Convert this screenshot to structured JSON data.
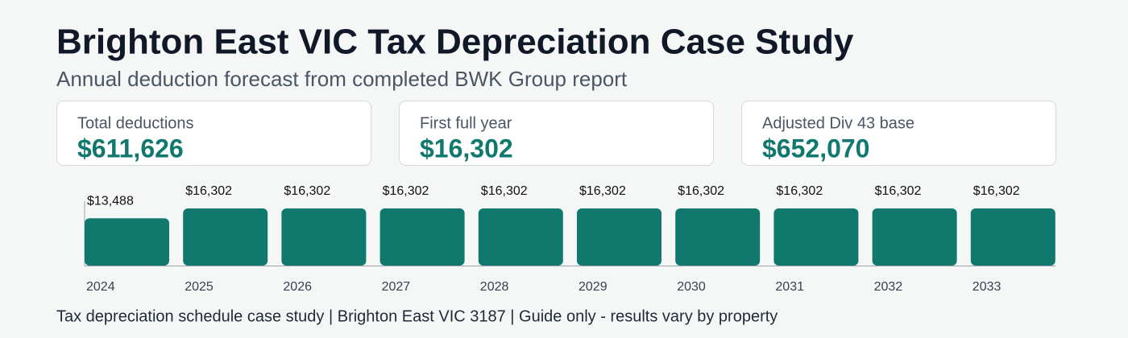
{
  "header": {
    "title": "Brighton East VIC Tax Depreciation Case Study",
    "subtitle": "Annual deduction forecast from completed BWK Group report"
  },
  "kpis": [
    {
      "label": "Total deductions",
      "value": "$611,626"
    },
    {
      "label": "First full year",
      "value": "$16,302"
    },
    {
      "label": "Adjusted Div 43 base",
      "value": "$652,070"
    }
  ],
  "chart_data": {
    "type": "bar",
    "categories": [
      "2024",
      "2025",
      "2026",
      "2027",
      "2028",
      "2029",
      "2030",
      "2031",
      "2032",
      "2033"
    ],
    "values": [
      13488,
      16302,
      16302,
      16302,
      16302,
      16302,
      16302,
      16302,
      16302,
      16302
    ],
    "value_labels": [
      "$13,488",
      "$16,302",
      "$16,302",
      "$16,302",
      "$16,302",
      "$16,302",
      "$16,302",
      "$16,302",
      "$16,302",
      "$16,302"
    ],
    "color": "#11786e"
  },
  "footer": "Tax depreciation schedule case study | Brighton East VIC 3187 | Guide only - results vary by property"
}
